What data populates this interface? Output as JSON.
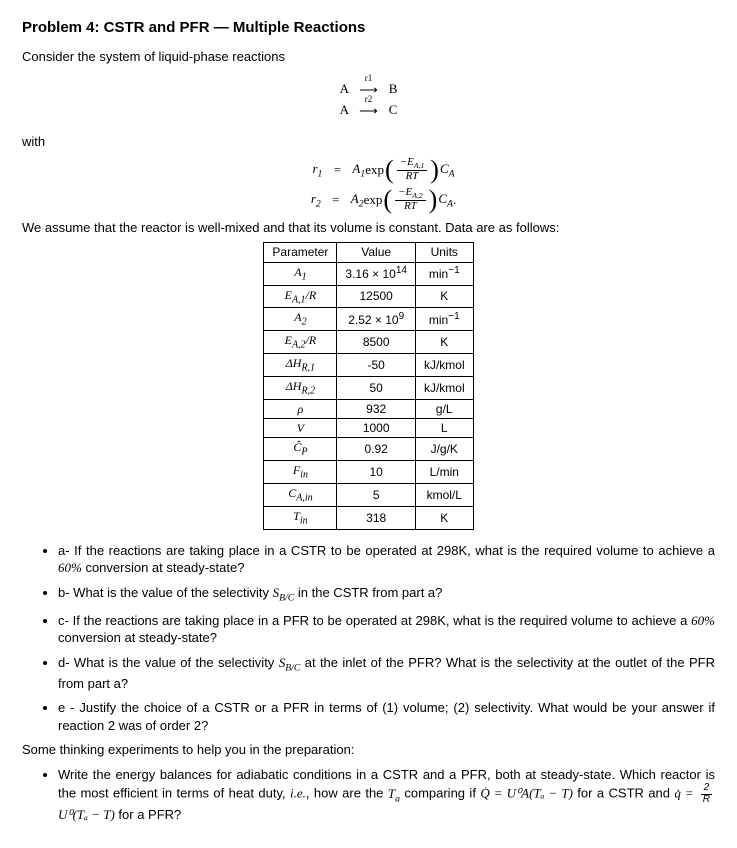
{
  "title": "Problem 4: CSTR and PFR — Multiple Reactions",
  "intro": "Consider the system of liquid-phase reactions",
  "rxn1_left": "A",
  "rxn1_sup": "r1",
  "rxn1_right": "B",
  "rxn2_left": "A",
  "rxn2_sup": "r2",
  "rxn2_right": "C",
  "with": "with",
  "eq1_lhs": "r",
  "eq1_lhs_sub": "1",
  "eq1_A": "A",
  "eq1_A_sub": "1",
  "eq1_exp": " exp",
  "eq1_num_E": "−E",
  "eq1_num_sub": "A,1",
  "eq1_den": "RT",
  "eq1_tail": "C",
  "eq1_tail_sub": "A",
  "eq2_lhs": "r",
  "eq2_lhs_sub": "2",
  "eq2_A": "A",
  "eq2_A_sub": "2",
  "eq2_exp": " exp",
  "eq2_num_E": "−E",
  "eq2_num_sub": "A,2",
  "eq2_den": "RT",
  "eq2_tail": "C",
  "eq2_tail_sub": "A",
  "eq2_dot": ".",
  "assume": "We assume that the reactor is well-mixed and that its volume is constant. Data are as follows:",
  "th_param": "Parameter",
  "th_value": "Value",
  "th_units": "Units",
  "rows": [
    {
      "p": "A<sub>1</sub>",
      "v": "3.16 × 10<sup>14</sup>",
      "u": "min<sup>−1</sup>"
    },
    {
      "p": "E<sub>A,1</sub>/R",
      "v": "12500",
      "u": "K"
    },
    {
      "p": "A<sub>2</sub>",
      "v": "2.52 × 10<sup>9</sup>",
      "u": "min<sup>−1</sup>"
    },
    {
      "p": "E<sub>A,2</sub>/R",
      "v": "8500",
      "u": "K"
    },
    {
      "p": "ΔH<sub>R,1</sub>",
      "v": "-50",
      "u": "kJ/kmol"
    },
    {
      "p": "ΔH<sub>R,2</sub>",
      "v": "50",
      "u": "kJ/kmol"
    },
    {
      "p": "ρ",
      "v": "932",
      "u": "g/L"
    },
    {
      "p": "V",
      "v": "1000",
      "u": "L"
    },
    {
      "p": "Ĉ<sub>P</sub>",
      "v": "0.92",
      "u": "J/g/K"
    },
    {
      "p": "F<sub>in</sub>",
      "v": "10",
      "u": "L/min"
    },
    {
      "p": "C<sub>A,in</sub>",
      "v": "5",
      "u": "kmol/L"
    },
    {
      "p": "T<sub>in</sub>",
      "v": "318",
      "u": "K"
    }
  ],
  "qa": "a- If the reactions are taking place in a CSTR to be operated at 298K, what is the required volume to achieve a 60% conversion at steady-state?",
  "qb_pre": "b- What is the value of the selectivity ",
  "qb_sym": "S",
  "qb_sub": "B/C",
  "qb_post": " in the CSTR from part a?",
  "qc": "c- If the reactions are taking place in a PFR to be operated at 298K, what is the required volume to achieve a 60% conversion at steady-state?",
  "qd_pre": "d- What is the value of the selectivity ",
  "qd_sym": "S",
  "qd_sub": "B/C",
  "qd_post": " at the inlet of the PFR? What is the selectivity at the outlet of the PFR from part a?",
  "qe": "e - Justify the choice of a CSTR or a PFR in terms of (1) volume; (2) selectivity. What would be your answer if reaction 2 was of order 2?",
  "thinking": "Some thinking experiments to help you in the preparation:",
  "bullet_pre": "Write the energy balances for adiabatic conditions in a CSTR and a PFR, both at steady-state. Which reactor is the most efficient in terms of heat duty, ",
  "bullet_ie": "i.e.",
  "bullet_mid": ", how are the ",
  "bullet_Ta": "T",
  "bullet_Ta_sub": "a",
  "bullet_post1": " comparing if ",
  "bullet_Q": "Q̇ = U⁰A(Tₐ − T)",
  "bullet_post2": " for a CSTR and ",
  "bullet_q": "q̇ = ",
  "bullet_frac_num": "2",
  "bullet_frac_den": "R",
  "bullet_q2": "U⁰(Tₐ − T)",
  "bullet_post3": " for a PFR?"
}
